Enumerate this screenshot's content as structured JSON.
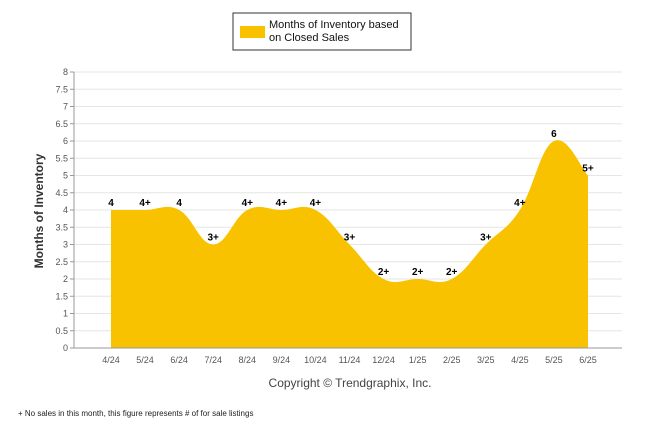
{
  "chart_data": {
    "type": "area",
    "categories": [
      "4/24",
      "5/24",
      "6/24",
      "7/24",
      "8/24",
      "9/24",
      "10/24",
      "11/24",
      "12/24",
      "1/25",
      "2/25",
      "3/25",
      "4/25",
      "5/25",
      "6/25"
    ],
    "series": [
      {
        "name": "Months of Inventory based on Closed Sales",
        "values": [
          4,
          4,
          4,
          3,
          4,
          4,
          4,
          3,
          2,
          2,
          2,
          3,
          4,
          6,
          5
        ],
        "labels": [
          "4",
          "4+",
          "4",
          "3+",
          "4+",
          "4+",
          "4+",
          "3+",
          "2+",
          "2+",
          "2+",
          "3+",
          "4+",
          "6",
          "5+"
        ],
        "color": "#F8C200"
      }
    ],
    "ylabel": "Months of Inventory",
    "xlabel": "",
    "ylim": [
      0,
      8
    ],
    "yticks": [
      "0",
      "0.5",
      "1",
      "1.5",
      "2",
      "2.5",
      "3",
      "3.5",
      "4",
      "4.5",
      "5",
      "5.5",
      "6",
      "6.5",
      "7",
      "7.5",
      "8"
    ],
    "grid": true,
    "legend_position": "top-center",
    "legend_lines": [
      "Months of Inventory based",
      "on Closed Sales"
    ]
  },
  "copyright": "Copyright © Trendgraphix, Inc.",
  "footnote": "+ No sales in this month, this figure represents # of for sale listings"
}
